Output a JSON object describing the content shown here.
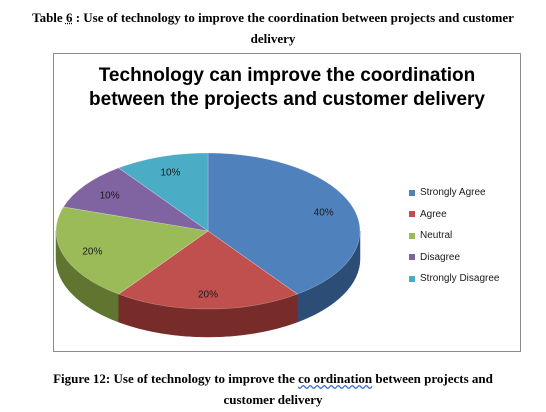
{
  "top_caption": {
    "label": "Table",
    "number": "6",
    "rest": ": Use of technology to improve the coordination between projects and customer",
    "line2": "delivery"
  },
  "bottom_caption": {
    "before": "Figure 12: Use of technology to improve the",
    "underlined": "co ordination",
    "after": "between projects and",
    "line2": "customer delivery"
  },
  "chart_data": {
    "type": "pie",
    "title_line1": "Technology can improve the coordination",
    "title_line2": "between the projects and customer delivery",
    "categories": [
      "Strongly Agree",
      "Agree",
      "Neutral",
      "Disagree",
      "Strongly Disagree"
    ],
    "values": [
      40,
      20,
      20,
      10,
      10
    ],
    "data_labels": [
      "40%",
      "20%",
      "20%",
      "10%",
      "10%"
    ],
    "colors": [
      "#4f81bd",
      "#c0504d",
      "#9bbb59",
      "#8064a2",
      "#4bacc6"
    ],
    "side_colors": [
      "#2c4d75",
      "#772c2a",
      "#5f7530",
      "#4d3b62",
      "#276a7c"
    ],
    "legend_position": "right",
    "style": "3d"
  }
}
